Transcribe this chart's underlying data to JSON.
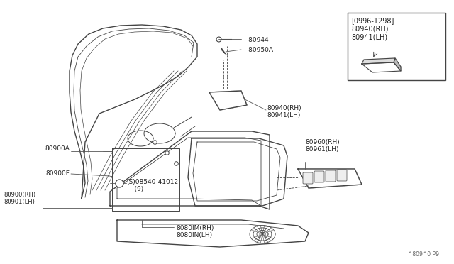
{
  "bg_color": "#ffffff",
  "line_color": "#444444",
  "text_color": "#222222",
  "watermark": "^809^0 P9",
  "inset_label": "[0996-1298]\n80940(RH)\n80941(LH)",
  "label_80944": "- 80944",
  "label_80950A": "- 80950A",
  "label_80940": "80940(RH)\n80941(LH)",
  "label_80960": "80960(RH)\n80961(LH)",
  "label_80900A": "80900A",
  "label_80900F": "80900F",
  "label_80900rh": "80900(RH)\n80901(LH)",
  "label_08540": "(S)08540-41012\n    (9)",
  "label_8080": "8080IM(RH)\n8080IN(LH)"
}
